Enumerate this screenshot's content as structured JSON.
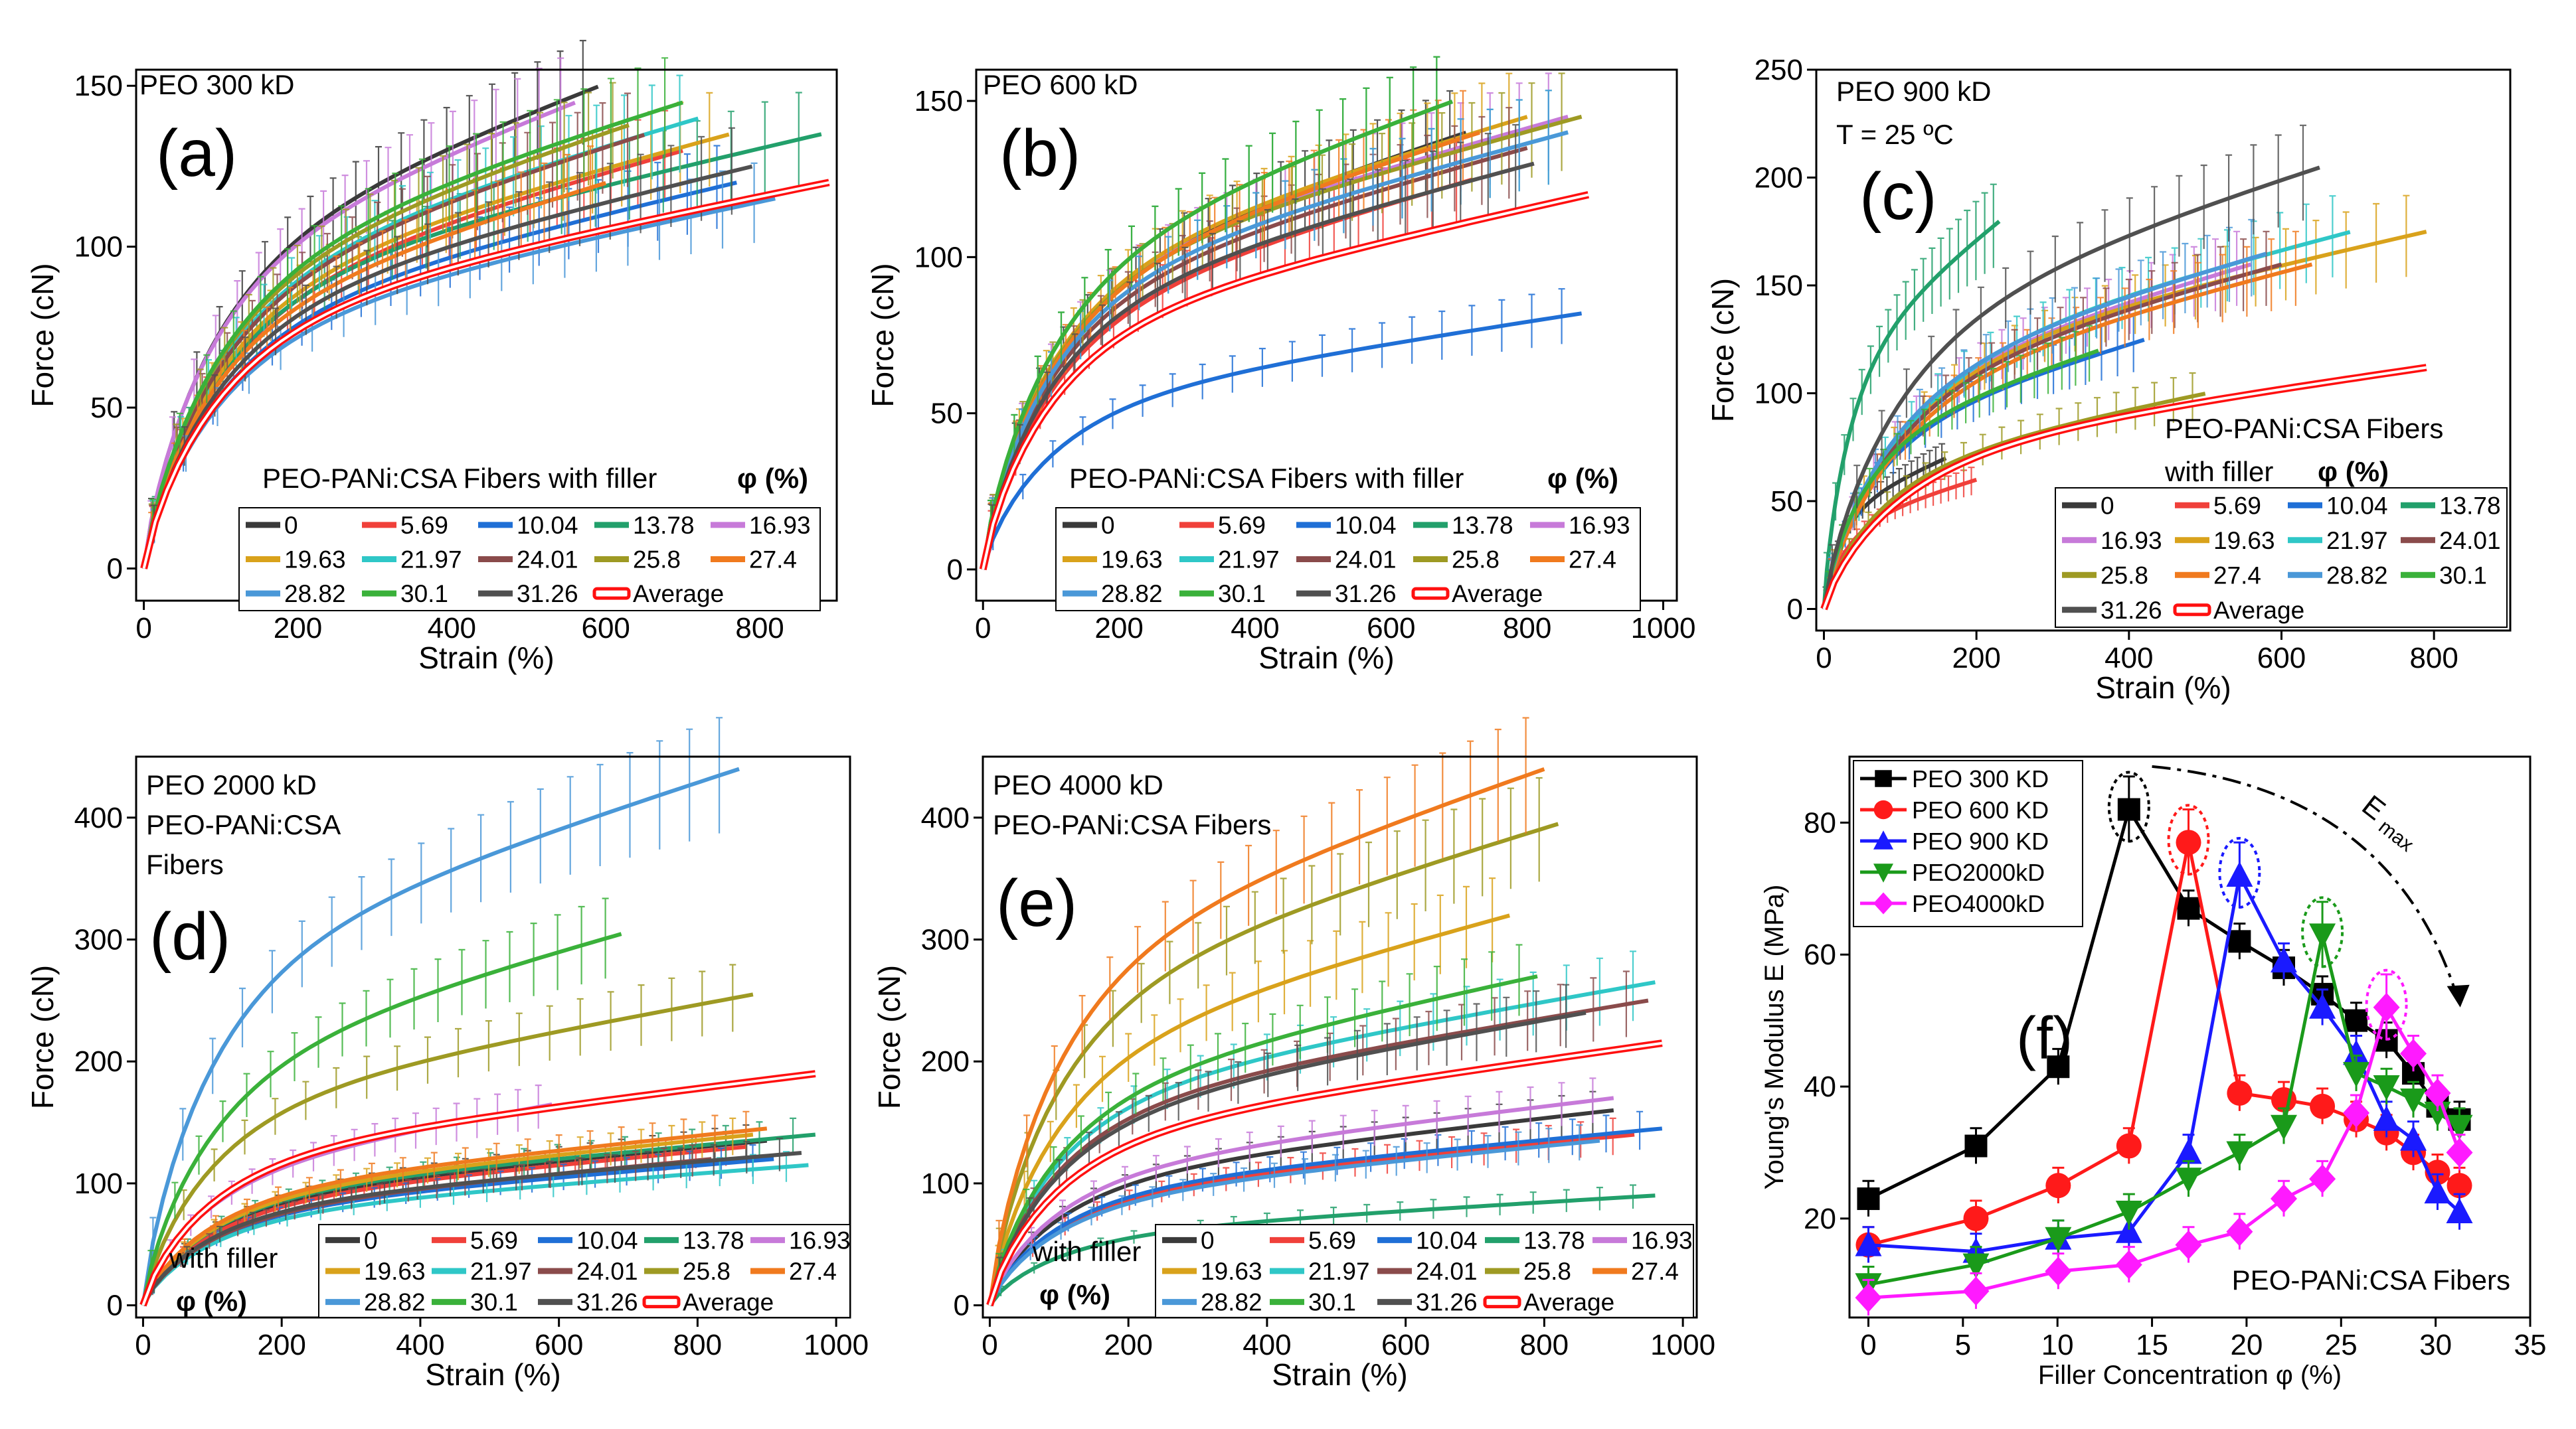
{
  "colors": {
    "s0": "#3a3a3a",
    "s5_69": "#f0403a",
    "s10_04": "#1f6fd6",
    "s13_78": "#22a06b",
    "s16_93": "#c77ad9",
    "s19_63": "#d9a21b",
    "s21_97": "#2fc7c7",
    "s24_01": "#8a4b4b",
    "s25_8": "#9e9a23",
    "s27_4": "#f07a1e",
    "s28_82": "#4a98d8",
    "s30_1": "#3ab13a",
    "s31_26": "#505050",
    "average": "#ff1010"
  },
  "legend_labels": [
    "0",
    "5.69",
    "10.04",
    "13.78",
    "16.93",
    "19.63",
    "21.97",
    "24.01",
    "25.8",
    "27.4",
    "28.82",
    "30.1",
    "31.26",
    "Average"
  ],
  "panels": [
    {
      "id": "a",
      "title": "PEO 300 kD",
      "letter": "(a)",
      "note": "PEO-PANi:CSA Fibers with filler",
      "phi": "φ (%)",
      "xlabel": "Strain (%)",
      "ylabel": "Force (cN)",
      "xlim": [
        -10,
        900
      ],
      "ylim": [
        -10,
        155
      ],
      "xticks": [
        "0",
        "200",
        "400",
        "600",
        "800"
      ],
      "yticks": [
        "0",
        "50",
        "100",
        "150"
      ],
      "curves": [
        [
          1,
          150,
          590
        ],
        [
          2,
          130,
          700
        ],
        [
          3,
          120,
          770
        ],
        [
          4,
          135,
          880
        ],
        [
          5,
          145,
          560
        ],
        [
          6,
          135,
          760
        ],
        [
          7,
          140,
          720
        ],
        [
          8,
          135,
          650
        ],
        [
          9,
          138,
          630
        ],
        [
          10,
          120,
          600
        ],
        [
          11,
          115,
          820
        ],
        [
          12,
          145,
          700
        ],
        [
          13,
          125,
          790
        ],
        [
          14,
          120,
          890
        ]
      ]
    },
    {
      "id": "b",
      "title": "PEO 600 kD",
      "letter": "(b)",
      "note": "PEO-PANi:CSA Fibers with filler",
      "phi": "φ (%)",
      "xlabel": "Strain (%)",
      "ylabel": "Force (cN)",
      "xlim": [
        -10,
        1020
      ],
      "ylim": [
        -10,
        160
      ],
      "xticks": [
        "0",
        "200",
        "400",
        "600",
        "800",
        "1000"
      ],
      "yticks": [
        "0",
        "50",
        "100",
        "150"
      ],
      "curves": [
        [
          1,
          140,
          710
        ],
        [
          2,
          125,
          720
        ],
        [
          3,
          82,
          880
        ],
        [
          4,
          150,
          690
        ],
        [
          5,
          145,
          860
        ],
        [
          6,
          145,
          800
        ],
        [
          7,
          140,
          860
        ],
        [
          8,
          135,
          800
        ],
        [
          9,
          145,
          880
        ],
        [
          10,
          140,
          730
        ],
        [
          11,
          140,
          860
        ],
        [
          12,
          150,
          690
        ],
        [
          13,
          130,
          810
        ],
        [
          14,
          120,
          890
        ]
      ]
    },
    {
      "id": "c",
      "title": "PEO 900 kD",
      "temp": "T = 25 ºC",
      "letter": "(c)",
      "note": "PEO-PANi:CSA Fibers",
      "note2": "with filler",
      "phi": "φ (%)",
      "xlabel": "Strain (%)",
      "ylabel": "Force (cN)",
      "xlim": [
        -10,
        900
      ],
      "ylim": [
        -10,
        250
      ],
      "xticks": [
        "0",
        "200",
        "400",
        "600",
        "800"
      ],
      "yticks": [
        "0",
        "50",
        "100",
        "150",
        "200",
        "250"
      ],
      "curves": [
        [
          1,
          70,
          160
        ],
        [
          2,
          60,
          200
        ],
        [
          3,
          125,
          420
        ],
        [
          4,
          180,
          230
        ],
        [
          5,
          160,
          560
        ],
        [
          6,
          175,
          790
        ],
        [
          7,
          175,
          690
        ],
        [
          8,
          160,
          600
        ],
        [
          9,
          100,
          500
        ],
        [
          10,
          160,
          640
        ],
        [
          11,
          165,
          580
        ],
        [
          12,
          120,
          360
        ],
        [
          13,
          205,
          650
        ],
        [
          14,
          112,
          790
        ]
      ]
    },
    {
      "id": "d",
      "title": "PEO 2000 kD",
      "sub1": "PEO-PANi:CSA",
      "sub2": "Fibers",
      "letter": "(d)",
      "note": "with filler",
      "phi": "φ (%)",
      "xlabel": "Strain (%)",
      "ylabel": "Force (cN)",
      "xlim": [
        -10,
        1020
      ],
      "ylim": [
        -10,
        450
      ],
      "xticks": [
        "0",
        "200",
        "400",
        "600",
        "800",
        "1000"
      ],
      "yticks": [
        "0",
        "100",
        "200",
        "300",
        "400"
      ],
      "curves": [
        [
          1,
          135,
          900
        ],
        [
          2,
          130,
          870
        ],
        [
          3,
          120,
          910
        ],
        [
          4,
          140,
          970
        ],
        [
          5,
          165,
          590
        ],
        [
          6,
          140,
          880
        ],
        [
          7,
          115,
          960
        ],
        [
          8,
          120,
          820
        ],
        [
          9,
          255,
          880
        ],
        [
          10,
          145,
          900
        ],
        [
          11,
          440,
          860
        ],
        [
          12,
          305,
          690
        ],
        [
          13,
          125,
          950
        ],
        [
          14,
          190,
          970
        ]
      ]
    },
    {
      "id": "e",
      "title": "PEO 4000 kD",
      "sub1": "PEO-PANi:CSA Fibers",
      "letter": "(e)",
      "note": "with filler",
      "phi": "φ (%)",
      "xlabel": "Strain (%)",
      "ylabel": "Force (cN)",
      "xlim": [
        -10,
        1020
      ],
      "ylim": [
        -10,
        450
      ],
      "xticks": [
        "0",
        "200",
        "400",
        "600",
        "800",
        "1000"
      ],
      "yticks": [
        "0",
        "100",
        "200",
        "300",
        "400"
      ],
      "curves": [
        [
          1,
          160,
          900
        ],
        [
          2,
          140,
          930
        ],
        [
          3,
          145,
          970
        ],
        [
          4,
          90,
          960
        ],
        [
          5,
          170,
          900
        ],
        [
          6,
          320,
          750
        ],
        [
          7,
          265,
          960
        ],
        [
          8,
          250,
          950
        ],
        [
          9,
          395,
          820
        ],
        [
          10,
          440,
          800
        ],
        [
          11,
          135,
          880
        ],
        [
          12,
          270,
          790
        ],
        [
          13,
          240,
          860
        ],
        [
          14,
          215,
          970
        ]
      ]
    }
  ],
  "chart_data": {
    "type": "line",
    "title": "(f)",
    "xlabel": "Filler Concentration φ (%)",
    "ylabel": "Young's Modulus E (MPa)",
    "xlim": [
      -1,
      35
    ],
    "ylim": [
      5,
      90
    ],
    "xticks": [
      "0",
      "5",
      "10",
      "15",
      "20",
      "25",
      "30",
      "35"
    ],
    "yticks": [
      "20",
      "40",
      "60",
      "80"
    ],
    "annotation": "PEO-PANi:CSA Fibers",
    "emax_label": "E",
    "emax_sub": "max",
    "series": [
      {
        "name": "PEO 300 KD",
        "marker": "square",
        "color": "#000000",
        "x": [
          0,
          5.69,
          10.04,
          13.78,
          16.93,
          19.63,
          21.97,
          24.01,
          25.8,
          27.4,
          28.82,
          30.1,
          31.26
        ],
        "y": [
          23,
          31,
          43,
          82,
          67,
          62,
          58,
          54,
          50,
          47,
          42,
          37,
          35
        ]
      },
      {
        "name": "PEO 600 KD",
        "marker": "circle",
        "color": "#ff1a1a",
        "x": [
          0,
          5.69,
          10.04,
          13.78,
          16.93,
          19.63,
          21.97,
          24.01,
          25.8,
          27.4,
          28.82,
          30.1,
          31.26
        ],
        "y": [
          16,
          20,
          25,
          31,
          77,
          39,
          38,
          37,
          35,
          33,
          30,
          27,
          25
        ]
      },
      {
        "name": "PEO 900 KD",
        "marker": "triangle",
        "color": "#1a1aff",
        "x": [
          0,
          5.69,
          10.04,
          13.78,
          16.93,
          19.63,
          21.97,
          24.01,
          25.8,
          27.4,
          28.82,
          30.1,
          31.26
        ],
        "y": [
          16,
          15,
          17,
          18,
          30,
          72,
          59,
          52,
          45,
          35,
          32,
          24,
          21
        ]
      },
      {
        "name": "PEO2000kD",
        "marker": "triangle-down",
        "color": "#1a9a1a",
        "x": [
          0,
          5.69,
          10.04,
          13.78,
          16.93,
          19.63,
          21.97,
          24.01,
          25.8,
          27.4,
          28.82,
          30.1,
          31.26
        ],
        "y": [
          10,
          13,
          17,
          21,
          26,
          30,
          34,
          63,
          42,
          40,
          38,
          36,
          34
        ]
      },
      {
        "name": "PEO4000kD",
        "marker": "diamond",
        "color": "#ff1aff",
        "x": [
          0,
          5.69,
          10.04,
          13.78,
          16.93,
          19.63,
          21.97,
          24.01,
          25.8,
          27.4,
          28.82,
          30.1,
          31.26
        ],
        "y": [
          8,
          9,
          12,
          13,
          16,
          18,
          23,
          26,
          36,
          52,
          45,
          39,
          30
        ]
      }
    ]
  }
}
